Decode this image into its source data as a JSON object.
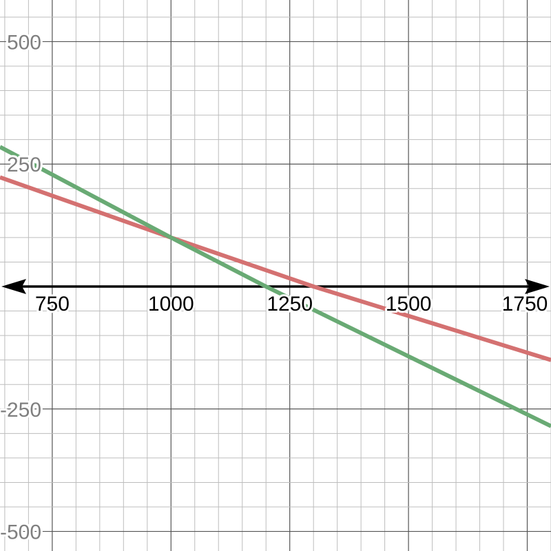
{
  "chart_data": {
    "type": "line",
    "xlim": [
      640,
      1800
    ],
    "ylim": [
      -540,
      585
    ],
    "x_ticks": [
      750,
      1000,
      1250,
      1500,
      1750
    ],
    "x_tick_labels": [
      "750",
      "1000",
      "1250",
      "1500",
      "1750"
    ],
    "y_ticks": [
      500,
      250,
      -250,
      -500
    ],
    "y_tick_labels": [
      "500",
      "250",
      "-250",
      "-500"
    ],
    "grid": true,
    "minor_step": 50,
    "major_step": 250,
    "x_axis_arrows": true,
    "series": [
      {
        "color": "#d47171",
        "points": [
          [
            640,
            223
          ],
          [
            1000,
            100
          ],
          [
            1300,
            0
          ],
          [
            1800,
            -150
          ]
        ]
      },
      {
        "color": "#69aa74",
        "points": [
          [
            640,
            285
          ],
          [
            1000,
            100
          ],
          [
            1200,
            0
          ],
          [
            1800,
            -285
          ]
        ]
      }
    ]
  }
}
